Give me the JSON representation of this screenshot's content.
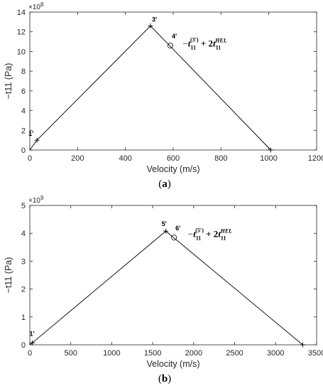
{
  "chart_data": [
    {
      "type": "line",
      "caption": "(a)",
      "caption_letter": "a",
      "xlabel": "Velocity (m/s)",
      "ylabel": "−t11 (Pa)",
      "xlim": [
        0,
        1200
      ],
      "ylim": [
        0,
        14
      ],
      "y_multiplier": "×10",
      "y_multiplier_exp": "8",
      "xticks": [
        0,
        200,
        400,
        600,
        800,
        1000,
        1200
      ],
      "yticks": [
        0,
        2,
        4,
        6,
        8,
        10,
        12,
        14
      ],
      "series": [
        {
          "x": [
            0,
            30,
            505,
            1008
          ],
          "y": [
            0,
            1.0,
            12.6,
            0
          ]
        }
      ],
      "points": [
        {
          "label": "1'",
          "x": 30,
          "y": 1.0,
          "marker": "plus",
          "dx": -12,
          "dy": -6
        },
        {
          "label": "3'",
          "x": 505,
          "y": 12.6,
          "marker": "plus",
          "dx": 2,
          "dy": -6
        },
        {
          "label": "4'",
          "x": 588,
          "y": 10.6,
          "marker": "circle",
          "dx": 2,
          "dy": -10
        },
        {
          "label": "",
          "x": 1008,
          "y": 0,
          "marker": "plus",
          "dx": 0,
          "dy": 0
        }
      ],
      "annotation": {
        "x": 640,
        "y": 10.5,
        "upper": "3′"
      }
    },
    {
      "type": "line",
      "caption": "(b)",
      "caption_letter": "b",
      "xlabel": "Velocity (m/s)",
      "ylabel": "−t11 (Pa)",
      "xlim": [
        0,
        3500
      ],
      "ylim": [
        0,
        5
      ],
      "y_multiplier": "×10",
      "y_multiplier_exp": "9",
      "xticks": [
        0,
        500,
        1000,
        1500,
        2000,
        2500,
        3000,
        3500
      ],
      "yticks": [
        0,
        1,
        2,
        3,
        4,
        5
      ],
      "series": [
        {
          "x": [
            0,
            30,
            1660,
            3330
          ],
          "y": [
            0,
            0.07,
            4.08,
            0
          ]
        }
      ],
      "points": [
        {
          "label": "1'",
          "x": 30,
          "y": 0.07,
          "marker": "plus",
          "dx": -4,
          "dy": -10
        },
        {
          "label": "5'",
          "x": 1660,
          "y": 4.08,
          "marker": "plus",
          "dx": -6,
          "dy": -7
        },
        {
          "label": "6'",
          "x": 1760,
          "y": 3.85,
          "marker": "circle",
          "dx": 2,
          "dy": -10
        },
        {
          "label": "",
          "x": 3330,
          "y": 0,
          "marker": "plus",
          "dx": 0,
          "dy": 0
        }
      ],
      "annotation": {
        "x": 1930,
        "y": 3.86,
        "upper": "5′"
      }
    }
  ],
  "formula": {
    "minus": "−",
    "t": "t",
    "sub11": "11",
    "plus": "+ 2",
    "hel": "HEL"
  }
}
